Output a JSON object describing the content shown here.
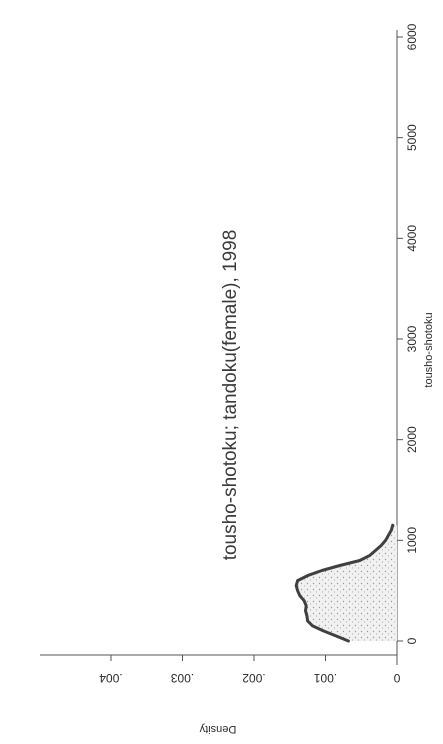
{
  "chart_data": {
    "type": "line",
    "title": "tousho-shotoku; tandoku(female), 1998",
    "xlabel": "tousho-shotoku",
    "ylabel": "Density",
    "xlim": [
      0,
      6000
    ],
    "ylim": [
      0,
      0.004
    ],
    "x_ticks": [
      0,
      1000,
      2000,
      3000,
      4000,
      5000,
      6000
    ],
    "x_tick_labels": [
      "0",
      "1000",
      "2000",
      "3000",
      "4000",
      "5000",
      "6000"
    ],
    "y_ticks": [
      0,
      0.001,
      0.002,
      0.003,
      0.004
    ],
    "y_tick_labels": [
      "0",
      ".001",
      ".002",
      ".003",
      ".004"
    ],
    "grid": false,
    "orientation": "rotated 90 degrees",
    "series": [
      {
        "fill": "stippled grey",
        "line_color": "#404040",
        "x": [
          0,
          50,
          100,
          150,
          200,
          250,
          300,
          350,
          400,
          450,
          500,
          550,
          600,
          650,
          700,
          750,
          800,
          850,
          900,
          950,
          1000,
          1050,
          1100,
          1150
        ],
        "y": [
          0.00068,
          0.00085,
          0.00103,
          0.00118,
          0.00125,
          0.00126,
          0.00128,
          0.00127,
          0.0013,
          0.00136,
          0.00139,
          0.00141,
          0.00139,
          0.00125,
          0.00105,
          0.0008,
          0.00052,
          0.00038,
          0.0003,
          0.00022,
          0.00016,
          0.00012,
          8e-05,
          6e-05
        ]
      }
    ]
  }
}
